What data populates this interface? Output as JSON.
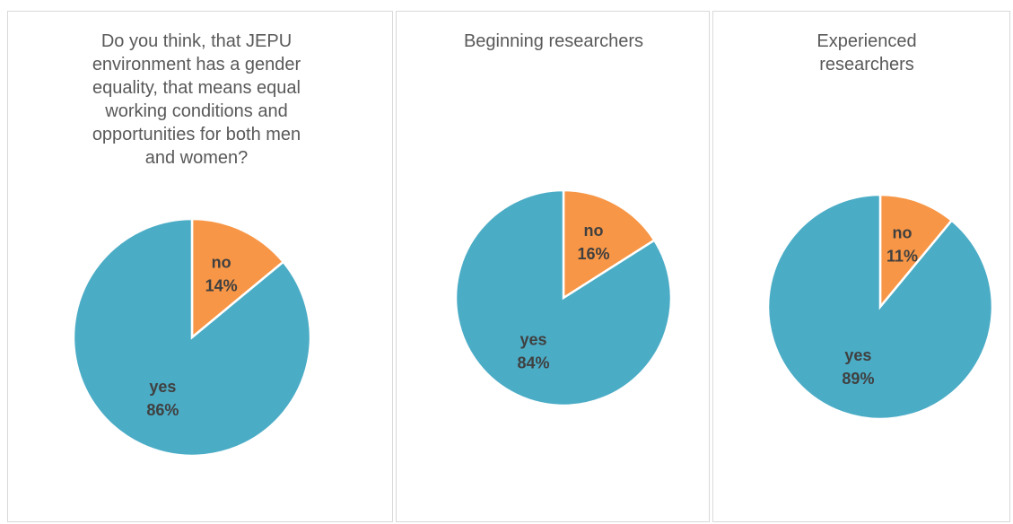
{
  "chart_data": [
    {
      "type": "pie",
      "title": "Do you think, that JEPU environment has a gender equality, that means equal working conditions and opportunities for both men and women?",
      "categories": [
        "no",
        "yes"
      ],
      "values": [
        14,
        86
      ],
      "value_labels": [
        "14%",
        "86%"
      ],
      "colors": [
        "#f79646",
        "#4bacc6"
      ]
    },
    {
      "type": "pie",
      "title": "Beginning researchers",
      "categories": [
        "no",
        "yes"
      ],
      "values": [
        16,
        84
      ],
      "value_labels": [
        "16%",
        "84%"
      ],
      "colors": [
        "#f79646",
        "#4bacc6"
      ]
    },
    {
      "type": "pie",
      "title": "Experienced researchers",
      "categories": [
        "no",
        "yes"
      ],
      "values": [
        11,
        89
      ],
      "value_labels": [
        "11%",
        "89%"
      ],
      "colors": [
        "#f79646",
        "#4bacc6"
      ]
    }
  ]
}
